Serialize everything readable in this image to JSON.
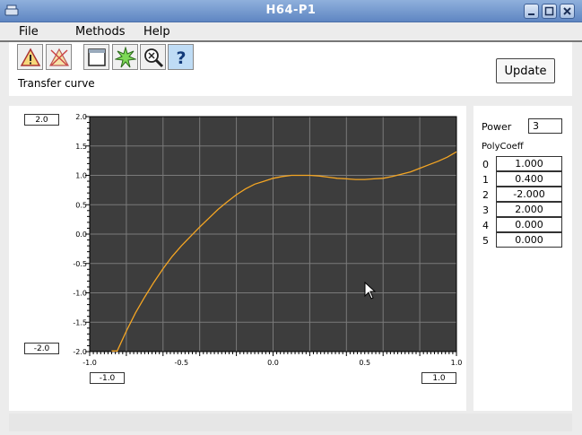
{
  "window": {
    "title": "H64-P1"
  },
  "menu": {
    "file": "File",
    "methods": "Methods",
    "help": "Help"
  },
  "toolbar": {
    "buttons": [
      {
        "icon": "warning-icon"
      },
      {
        "icon": "warning-crossed-icon"
      },
      {
        "icon": "window-icon"
      },
      {
        "icon": "starburst-icon"
      },
      {
        "icon": "zoom-close-icon"
      },
      {
        "icon": "help-icon",
        "glyph": "?"
      }
    ],
    "section_label": "Transfer curve",
    "update_label": "Update"
  },
  "plot": {
    "y_max_field": "2.0",
    "y_min_field": "-2.0",
    "x_min_field": "-1.0",
    "x_max_field": "1.0"
  },
  "params": {
    "power_label": "Power",
    "power_value": "3",
    "polycoeff_label": "PolyCoeff",
    "coefficients": [
      {
        "index": "0",
        "value": "1.000"
      },
      {
        "index": "1",
        "value": "0.400"
      },
      {
        "index": "2",
        "value": "-2.000"
      },
      {
        "index": "3",
        "value": "2.000"
      },
      {
        "index": "4",
        "value": "0.000"
      },
      {
        "index": "5",
        "value": "0.000"
      }
    ]
  },
  "colors": {
    "plot_bg": "#3d3d3d",
    "grid": "#7a7a7a",
    "curve": "#f5a623"
  },
  "chart_data": {
    "type": "line",
    "title": "",
    "xlabel": "",
    "ylabel": "",
    "xlim": [
      -1.0,
      1.0
    ],
    "ylim": [
      -2.0,
      2.0
    ],
    "grid": true,
    "x_ticks": [
      "-1.0",
      "-0.5",
      "0.0",
      "0.5",
      "1.0"
    ],
    "y_ticks": [
      "2.0",
      "1.5",
      "1.0",
      "0.5",
      "0.0",
      "-0.5",
      "-1.0",
      "-1.5",
      "-2.0"
    ],
    "series": [
      {
        "x": [
          -0.85,
          -0.8,
          -0.75,
          -0.7,
          -0.65,
          -0.6,
          -0.55,
          -0.5,
          -0.45,
          -0.4,
          -0.35,
          -0.3,
          -0.25,
          -0.2,
          -0.15,
          -0.1,
          -0.05,
          0.0,
          0.05,
          0.1,
          0.15,
          0.2,
          0.25,
          0.3,
          0.35,
          0.4,
          0.45,
          0.5,
          0.55,
          0.6,
          0.65,
          0.7,
          0.75,
          0.8,
          0.85,
          0.9,
          0.95,
          1.0
        ],
        "y": [
          -1.99,
          -1.65,
          -1.34,
          -1.07,
          -0.82,
          -0.59,
          -0.38,
          -0.2,
          -0.04,
          0.12,
          0.27,
          0.42,
          0.55,
          0.67,
          0.77,
          0.85,
          0.9,
          0.95,
          0.98,
          1.0,
          1.0,
          1.0,
          0.99,
          0.97,
          0.95,
          0.94,
          0.93,
          0.93,
          0.94,
          0.95,
          0.98,
          1.02,
          1.06,
          1.12,
          1.18,
          1.24,
          1.31,
          1.4
        ]
      }
    ]
  }
}
